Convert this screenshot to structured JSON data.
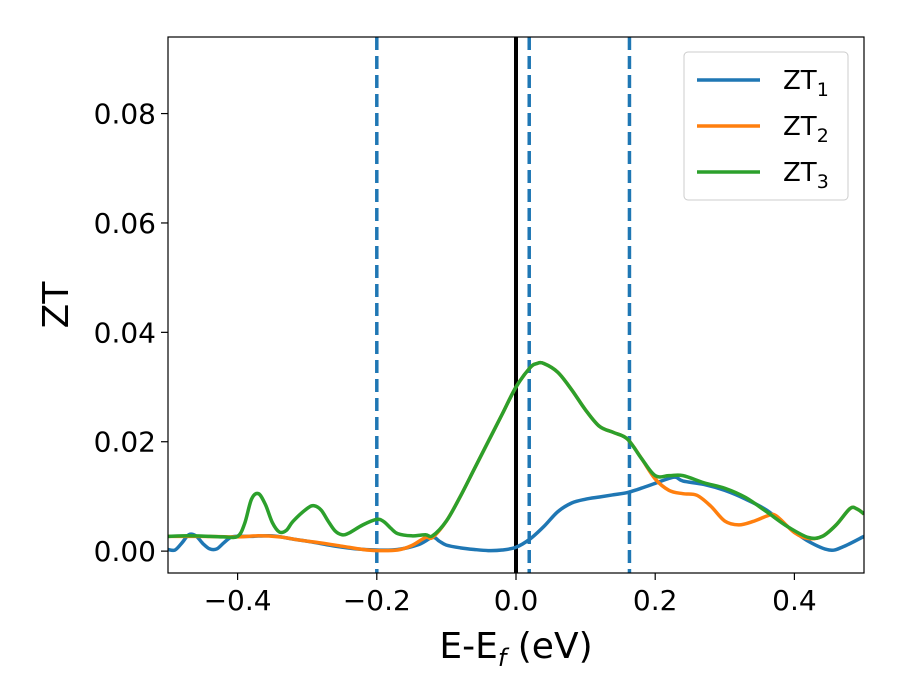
{
  "chart_data": {
    "type": "line",
    "xlabel": "E-E",
    "xlabel_sub": "f",
    "xlabel_unit": " (eV)",
    "ylabel": "ZT",
    "xlim": [
      -0.5,
      0.5
    ],
    "ylim": [
      -0.004,
      0.094
    ],
    "xticks": [
      -0.4,
      -0.2,
      0.0,
      0.2,
      0.4
    ],
    "xtick_labels": [
      "−0.4",
      "−0.2",
      "0.0",
      "0.2",
      "0.4"
    ],
    "yticks": [
      0.0,
      0.02,
      0.04,
      0.06,
      0.08
    ],
    "ytick_labels": [
      "0.00",
      "0.02",
      "0.04",
      "0.06",
      "0.08"
    ],
    "grid": false,
    "legend_position": "top-right",
    "vlines": [
      {
        "x": 0.0,
        "style": "solid",
        "color": "#000000"
      },
      {
        "x": -0.2,
        "style": "dashed",
        "color": "#1f77b4"
      },
      {
        "x": 0.019,
        "style": "dashed",
        "color": "#1f77b4"
      },
      {
        "x": 0.163,
        "style": "dashed",
        "color": "#1f77b4"
      }
    ],
    "series": [
      {
        "name": "ZT",
        "name_sub": "1",
        "color": "#1f77b4",
        "points": [
          [
            -0.5,
            0.0003
          ],
          [
            -0.49,
            0.0002
          ],
          [
            -0.48,
            0.0015
          ],
          [
            -0.47,
            0.003
          ],
          [
            -0.46,
            0.0028
          ],
          [
            -0.45,
            0.0014
          ],
          [
            -0.44,
            0.0004
          ],
          [
            -0.43,
            0.0004
          ],
          [
            -0.42,
            0.0015
          ],
          [
            -0.41,
            0.0025
          ],
          [
            -0.4,
            0.0027
          ],
          [
            -0.38,
            0.0027
          ],
          [
            -0.35,
            0.0028
          ],
          [
            -0.32,
            0.0022
          ],
          [
            -0.29,
            0.0016
          ],
          [
            -0.26,
            0.0009
          ],
          [
            -0.23,
            0.0004
          ],
          [
            -0.2,
            0.0002
          ],
          [
            -0.17,
            0.0003
          ],
          [
            -0.14,
            0.0012
          ],
          [
            -0.12,
            0.0025
          ],
          [
            -0.11,
            0.0018
          ],
          [
            -0.1,
            0.0011
          ],
          [
            -0.08,
            0.0006
          ],
          [
            -0.06,
            0.0003
          ],
          [
            -0.04,
            0.0001
          ],
          [
            -0.02,
            0.0002
          ],
          [
            0.0,
            0.0007
          ],
          [
            0.02,
            0.0022
          ],
          [
            0.04,
            0.0045
          ],
          [
            0.06,
            0.0072
          ],
          [
            0.08,
            0.0088
          ],
          [
            0.1,
            0.0095
          ],
          [
            0.12,
            0.0099
          ],
          [
            0.14,
            0.0103
          ],
          [
            0.16,
            0.0107
          ],
          [
            0.18,
            0.0115
          ],
          [
            0.2,
            0.0124
          ],
          [
            0.22,
            0.0133
          ],
          [
            0.23,
            0.0135
          ],
          [
            0.24,
            0.0128
          ],
          [
            0.27,
            0.0122
          ],
          [
            0.3,
            0.0111
          ],
          [
            0.33,
            0.0095
          ],
          [
            0.36,
            0.0075
          ],
          [
            0.39,
            0.0045
          ],
          [
            0.42,
            0.0018
          ],
          [
            0.45,
            0.0002
          ],
          [
            0.47,
            0.0008
          ],
          [
            0.5,
            0.0027
          ]
        ]
      },
      {
        "name": "ZT",
        "name_sub": "2",
        "color": "#ff7f0e",
        "points": [
          [
            -0.5,
            0.0027
          ],
          [
            -0.45,
            0.0027
          ],
          [
            -0.4,
            0.0026
          ],
          [
            -0.37,
            0.0028
          ],
          [
            -0.34,
            0.0026
          ],
          [
            -0.31,
            0.002
          ],
          [
            -0.28,
            0.0015
          ],
          [
            -0.25,
            0.0009
          ],
          [
            -0.22,
            0.0003
          ],
          [
            -0.2,
            0.0001
          ],
          [
            -0.17,
            0.0002
          ],
          [
            -0.15,
            0.001
          ],
          [
            -0.13,
            0.0025
          ],
          [
            -0.12,
            0.0025
          ],
          [
            -0.1,
            0.0055
          ],
          [
            -0.08,
            0.01
          ],
          [
            -0.06,
            0.015
          ],
          [
            -0.04,
            0.02
          ],
          [
            -0.02,
            0.025
          ],
          [
            0.0,
            0.03
          ],
          [
            0.02,
            0.0335
          ],
          [
            0.03,
            0.0343
          ],
          [
            0.04,
            0.0343
          ],
          [
            0.06,
            0.0327
          ],
          [
            0.08,
            0.0295
          ],
          [
            0.1,
            0.0258
          ],
          [
            0.12,
            0.0228
          ],
          [
            0.14,
            0.0217
          ],
          [
            0.16,
            0.0205
          ],
          [
            0.18,
            0.017
          ],
          [
            0.2,
            0.0132
          ],
          [
            0.22,
            0.0111
          ],
          [
            0.24,
            0.0105
          ],
          [
            0.26,
            0.0102
          ],
          [
            0.28,
            0.0082
          ],
          [
            0.3,
            0.0055
          ],
          [
            0.32,
            0.0048
          ],
          [
            0.34,
            0.0054
          ],
          [
            0.36,
            0.0064
          ],
          [
            0.37,
            0.0067
          ],
          [
            0.38,
            0.0058
          ],
          [
            0.4,
            0.0034
          ],
          [
            0.42,
            0.0023
          ],
          [
            0.44,
            0.0027
          ],
          [
            0.46,
            0.0048
          ],
          [
            0.48,
            0.0078
          ],
          [
            0.49,
            0.0077
          ],
          [
            0.5,
            0.0068
          ]
        ]
      },
      {
        "name": "ZT",
        "name_sub": "3",
        "color": "#2ca02c",
        "points": [
          [
            -0.5,
            0.0027
          ],
          [
            -0.47,
            0.0028
          ],
          [
            -0.44,
            0.0027
          ],
          [
            -0.42,
            0.0026
          ],
          [
            -0.4,
            0.0027
          ],
          [
            -0.39,
            0.005
          ],
          [
            -0.38,
            0.0095
          ],
          [
            -0.37,
            0.0105
          ],
          [
            -0.36,
            0.0085
          ],
          [
            -0.35,
            0.0052
          ],
          [
            -0.34,
            0.0035
          ],
          [
            -0.33,
            0.0038
          ],
          [
            -0.32,
            0.0055
          ],
          [
            -0.3,
            0.0078
          ],
          [
            -0.29,
            0.0083
          ],
          [
            -0.28,
            0.0075
          ],
          [
            -0.27,
            0.0055
          ],
          [
            -0.26,
            0.0037
          ],
          [
            -0.25,
            0.003
          ],
          [
            -0.24,
            0.0033
          ],
          [
            -0.22,
            0.0048
          ],
          [
            -0.2,
            0.0058
          ],
          [
            -0.19,
            0.0054
          ],
          [
            -0.18,
            0.0042
          ],
          [
            -0.17,
            0.0032
          ],
          [
            -0.15,
            0.0028
          ],
          [
            -0.13,
            0.003
          ],
          [
            -0.12,
            0.0028
          ],
          [
            -0.1,
            0.0055
          ],
          [
            -0.08,
            0.01
          ],
          [
            -0.06,
            0.015
          ],
          [
            -0.04,
            0.02
          ],
          [
            -0.02,
            0.025
          ],
          [
            0.0,
            0.03
          ],
          [
            0.02,
            0.0335
          ],
          [
            0.03,
            0.0343
          ],
          [
            0.04,
            0.0343
          ],
          [
            0.06,
            0.0327
          ],
          [
            0.08,
            0.0295
          ],
          [
            0.1,
            0.0258
          ],
          [
            0.12,
            0.0228
          ],
          [
            0.14,
            0.0217
          ],
          [
            0.16,
            0.0205
          ],
          [
            0.18,
            0.017
          ],
          [
            0.2,
            0.0138
          ],
          [
            0.22,
            0.0138
          ],
          [
            0.24,
            0.0138
          ],
          [
            0.27,
            0.0125
          ],
          [
            0.3,
            0.0115
          ],
          [
            0.33,
            0.0098
          ],
          [
            0.36,
            0.0072
          ],
          [
            0.39,
            0.0045
          ],
          [
            0.42,
            0.0025
          ],
          [
            0.44,
            0.0027
          ],
          [
            0.46,
            0.0048
          ],
          [
            0.48,
            0.0078
          ],
          [
            0.49,
            0.0077
          ],
          [
            0.5,
            0.0068
          ]
        ]
      }
    ]
  }
}
